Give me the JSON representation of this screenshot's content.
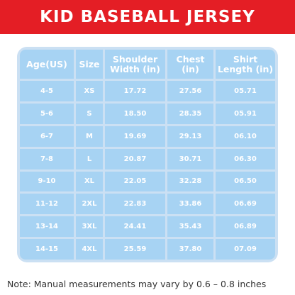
{
  "banner": {
    "title": "KID BASEBALL JERSEY"
  },
  "colors": {
    "banner": "#e41e25",
    "table_bg": "#cbe0f3",
    "cell_bg": "#a7d3f3",
    "text": "#ffffff"
  },
  "table": {
    "headers": [
      "Age(US)",
      "Size",
      "Shoulder\nWidth (in)",
      "Chest\n(in)",
      "Shirt\nLength (in)"
    ],
    "rows": [
      [
        "4-5",
        "XS",
        "17.72",
        "27.56",
        "05.71"
      ],
      [
        "5-6",
        "S",
        "18.50",
        "28.35",
        "05.91"
      ],
      [
        "6-7",
        "M",
        "19.69",
        "29.13",
        "06.10"
      ],
      [
        "7-8",
        "L",
        "20.87",
        "30.71",
        "06.30"
      ],
      [
        "9-10",
        "XL",
        "22.05",
        "32.28",
        "06.50"
      ],
      [
        "11-12",
        "2XL",
        "22.83",
        "33.86",
        "06.69"
      ],
      [
        "13-14",
        "3XL",
        "24.41",
        "35.43",
        "06.89"
      ],
      [
        "14-15",
        "4XL",
        "25.59",
        "37.80",
        "07.09"
      ]
    ]
  },
  "note": "Note: Manual measurements may vary by 0.6 – 0.8 inches"
}
